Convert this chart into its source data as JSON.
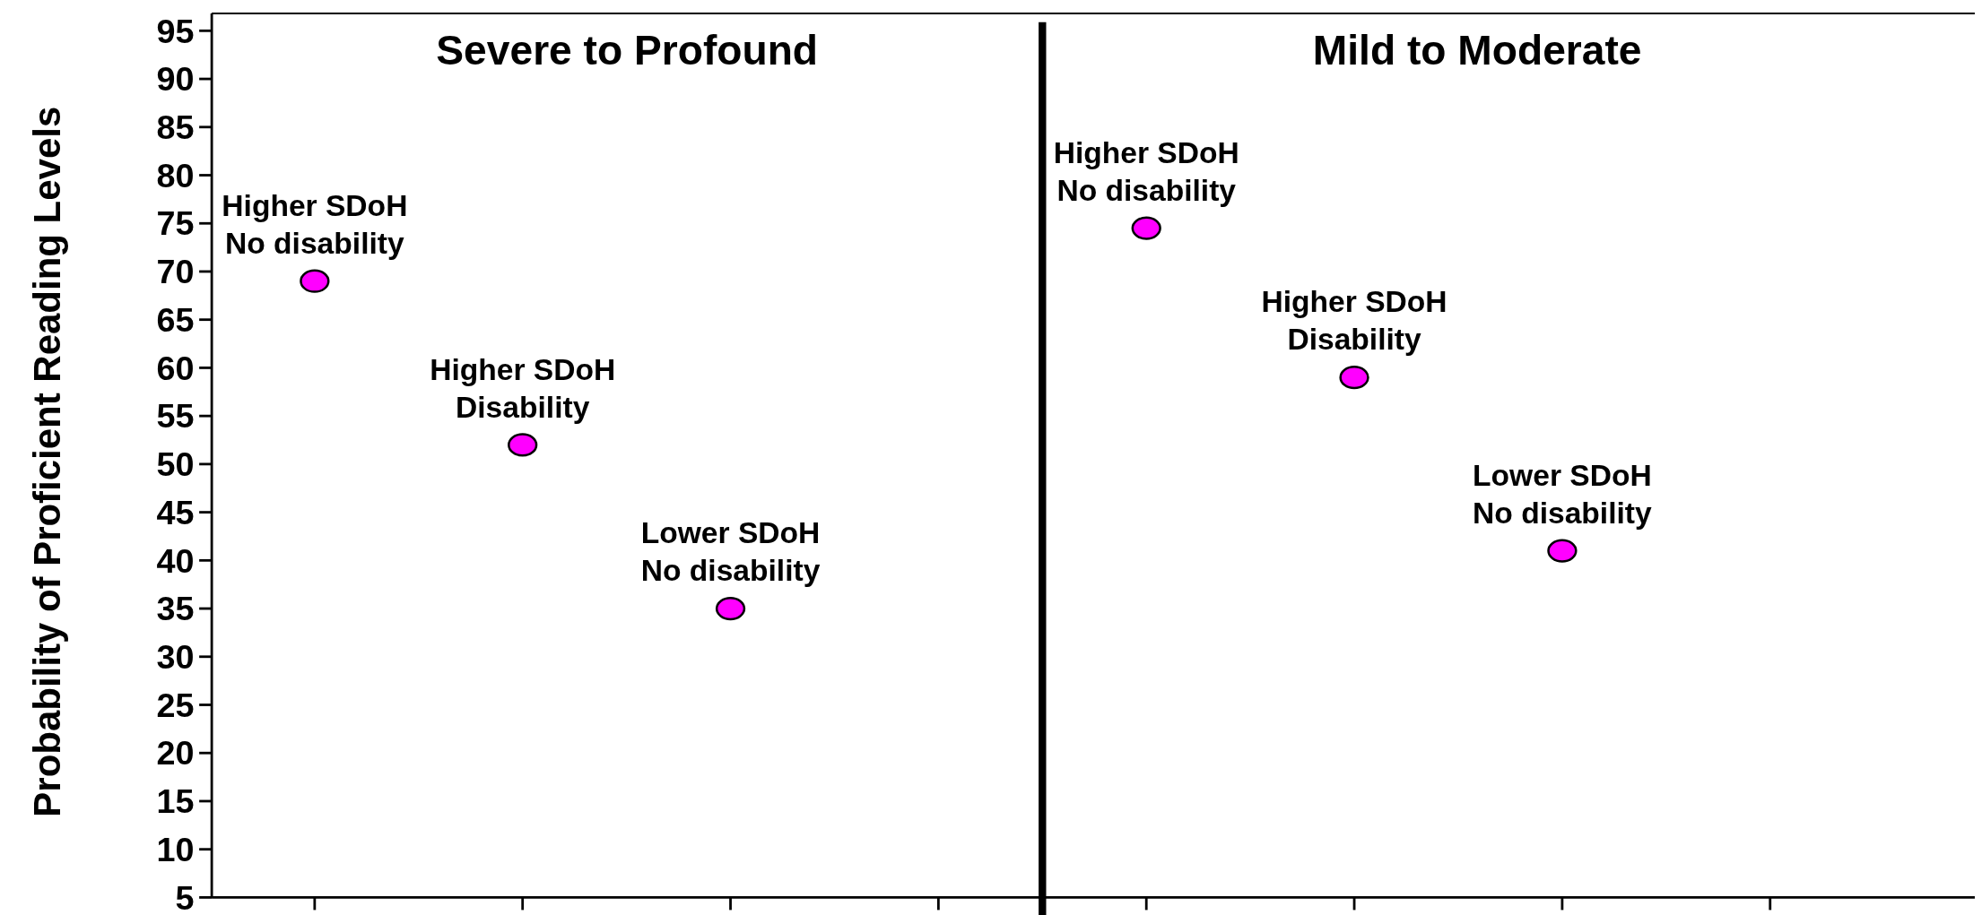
{
  "chart_data": {
    "type": "scatter",
    "ylabel": "Probability of Proficient Reading Levels",
    "categories": [
      null,
      null,
      null,
      null,
      null,
      null,
      null,
      null
    ],
    "series": [
      {
        "color": "#ff00ff",
        "values": [
          69,
          52,
          35,
          null,
          74.5,
          59,
          41,
          null
        ],
        "value_labels": [
          "Higher SDoH\nNo disability",
          "Higher SDoH\nDisability",
          "Lower SDoH\nNo disability",
          null,
          "Higher SDoH\nNo disability",
          "Higher SDoH\nDisability",
          "Lower SDoH\nNo disability",
          null
        ]
      }
    ],
    "marker": "circle",
    "ylim": [
      5,
      96.8
    ],
    "yticks": [
      5,
      10,
      15,
      20,
      25,
      30,
      35,
      40,
      45,
      50,
      55,
      60,
      65,
      70,
      75,
      80,
      85,
      90,
      95
    ],
    "annotations": [
      "Severe to Profound",
      "Mild to Moderate"
    ],
    "grid": false
  }
}
